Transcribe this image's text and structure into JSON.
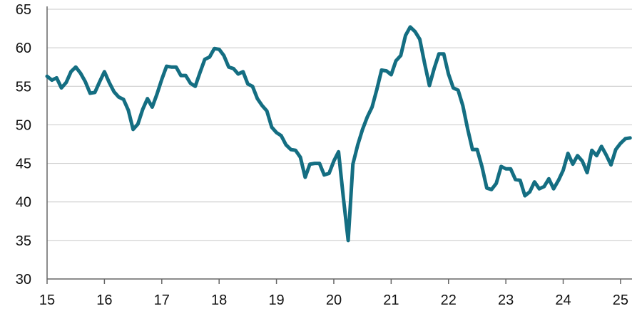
{
  "chart_data": {
    "type": "line",
    "title": "",
    "xlabel": "",
    "ylabel": "",
    "x_ticks": [
      "15",
      "16",
      "17",
      "18",
      "19",
      "20",
      "21",
      "22",
      "23",
      "24",
      "25"
    ],
    "y_ticks": [
      "30",
      "35",
      "40",
      "45",
      "50",
      "55",
      "60",
      "65"
    ],
    "xlim": [
      2015.0,
      2025.2
    ],
    "ylim": [
      30,
      65
    ],
    "grid": "horizontal",
    "series": [
      {
        "color": "#146e82",
        "x": [
          2015.0,
          2015.083,
          2015.167,
          2015.25,
          2015.333,
          2015.417,
          2015.5,
          2015.583,
          2015.667,
          2015.75,
          2015.833,
          2015.917,
          2016.0,
          2016.083,
          2016.167,
          2016.25,
          2016.333,
          2016.417,
          2016.5,
          2016.583,
          2016.667,
          2016.75,
          2016.833,
          2016.917,
          2017.0,
          2017.083,
          2017.167,
          2017.25,
          2017.333,
          2017.417,
          2017.5,
          2017.583,
          2017.667,
          2017.75,
          2017.833,
          2017.917,
          2018.0,
          2018.083,
          2018.167,
          2018.25,
          2018.333,
          2018.417,
          2018.5,
          2018.583,
          2018.667,
          2018.75,
          2018.833,
          2018.917,
          2019.0,
          2019.083,
          2019.167,
          2019.25,
          2019.333,
          2019.417,
          2019.5,
          2019.583,
          2019.667,
          2019.75,
          2019.833,
          2019.917,
          2020.0,
          2020.083,
          2020.167,
          2020.25,
          2020.333,
          2020.417,
          2020.5,
          2020.583,
          2020.667,
          2020.75,
          2020.833,
          2020.917,
          2021.0,
          2021.083,
          2021.167,
          2021.25,
          2021.333,
          2021.417,
          2021.5,
          2021.583,
          2021.667,
          2021.75,
          2021.833,
          2021.917,
          2022.0,
          2022.083,
          2022.167,
          2022.25,
          2022.333,
          2022.417,
          2022.5,
          2022.583,
          2022.667,
          2022.75,
          2022.833,
          2022.917,
          2023.0,
          2023.083,
          2023.167,
          2023.25,
          2023.333,
          2023.417,
          2023.5,
          2023.583,
          2023.667,
          2023.75,
          2023.833,
          2023.917,
          2024.0,
          2024.083,
          2024.167,
          2024.25,
          2024.333,
          2024.417,
          2024.5,
          2024.583,
          2024.667,
          2024.75,
          2024.833,
          2024.917,
          2025.0,
          2025.083,
          2025.167
        ],
        "y": [
          56.3,
          55.8,
          56.1,
          54.8,
          55.5,
          56.9,
          57.5,
          56.7,
          55.6,
          54.1,
          54.2,
          55.6,
          56.9,
          55.5,
          54.3,
          53.6,
          53.3,
          51.9,
          49.4,
          50.1,
          52.0,
          53.4,
          52.3,
          54.0,
          55.9,
          57.6,
          57.5,
          57.5,
          56.4,
          56.4,
          55.4,
          55.0,
          56.8,
          58.5,
          58.8,
          59.9,
          59.8,
          59.0,
          57.5,
          57.3,
          56.6,
          56.9,
          55.3,
          55.0,
          53.4,
          52.5,
          51.8,
          49.7,
          49.0,
          48.6,
          47.4,
          46.8,
          46.7,
          45.8,
          43.2,
          44.9,
          45.0,
          45.0,
          43.5,
          43.7,
          45.3,
          46.5,
          40.5,
          35.0,
          44.9,
          47.4,
          49.4,
          51.0,
          52.3,
          54.6,
          57.1,
          57.0,
          56.5,
          58.3,
          59.0,
          61.6,
          62.7,
          62.1,
          61.1,
          58.0,
          55.1,
          57.3,
          59.2,
          59.2,
          56.6,
          54.8,
          54.5,
          52.5,
          49.5,
          46.8,
          46.8,
          44.6,
          41.8,
          41.6,
          42.4,
          44.6,
          44.3,
          44.3,
          42.9,
          42.8,
          40.8,
          41.3,
          42.6,
          41.7,
          42.0,
          43.0,
          41.7,
          42.8,
          44.1,
          46.3,
          44.9,
          46.0,
          45.3,
          43.8,
          46.7,
          46.0,
          47.2,
          46.1,
          44.8,
          46.8,
          47.6,
          48.2,
          48.3
        ]
      }
    ]
  }
}
